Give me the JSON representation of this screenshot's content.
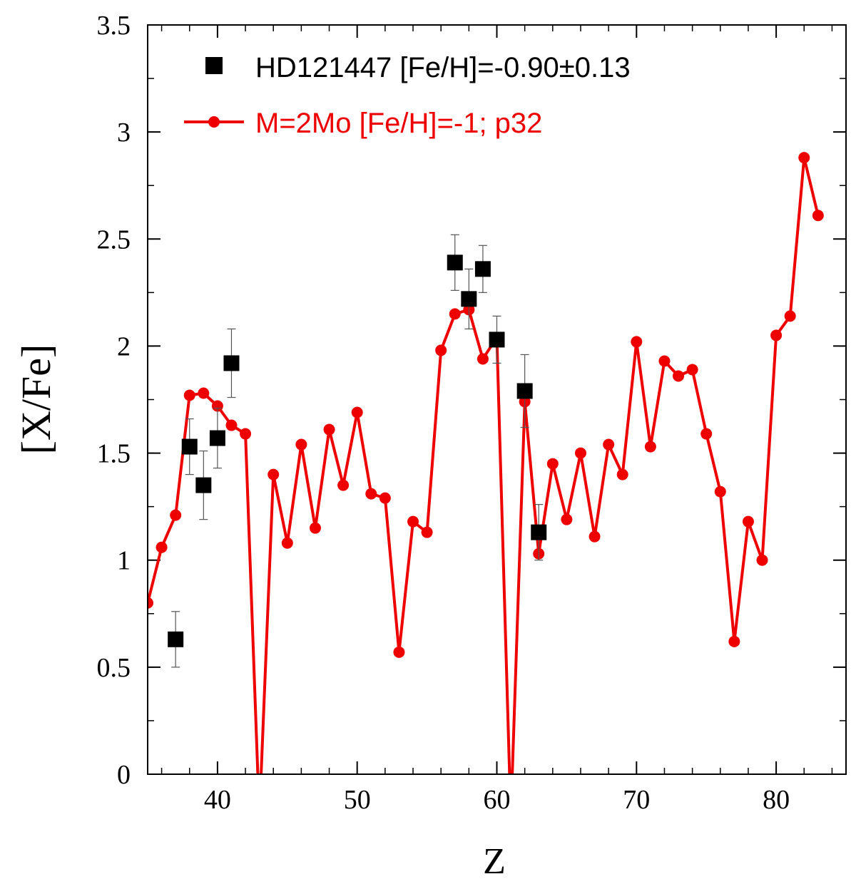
{
  "chart_data": {
    "type": "scatter",
    "xlabel": "Z",
    "ylabel": "[X/Fe]",
    "xlim": [
      35,
      85
    ],
    "ylim": [
      0,
      3.5
    ],
    "x_ticks": [
      40,
      50,
      60,
      70,
      80
    ],
    "x_tick_labels": [
      "40",
      "50",
      "60",
      "70",
      "80"
    ],
    "x_minor_step": 2,
    "y_ticks": [
      0,
      0.5,
      1,
      1.5,
      2,
      2.5,
      3,
      3.5
    ],
    "y_tick_labels": [
      "0",
      "0.5",
      "1",
      "1.5",
      "2",
      "2.5",
      "3",
      "3.5"
    ],
    "y_minor_step": 0.25,
    "grid": false,
    "legend_position": "top-left",
    "colors": {
      "observed": "#000000",
      "model": "#ee0000",
      "error_bar": "#555555"
    },
    "series": [
      {
        "name": "HD121447 [Fe/H]=-0.90±0.13",
        "kind": "scatter",
        "marker": "square",
        "color": "#000000",
        "x": [
          37,
          38,
          39,
          40,
          41,
          57,
          58,
          59,
          60,
          62,
          63
        ],
        "y": [
          0.63,
          1.53,
          1.35,
          1.57,
          1.92,
          2.39,
          2.22,
          2.36,
          2.03,
          1.79,
          1.13
        ],
        "yerr": [
          0.13,
          0.13,
          0.16,
          0.14,
          0.16,
          0.13,
          0.14,
          0.11,
          0.11,
          0.17,
          0.13
        ]
      },
      {
        "name": "M=2Mo [Fe/H]=-1; p32",
        "kind": "line",
        "marker": "circle",
        "color": "#ee0000",
        "x": [
          35,
          36,
          37,
          38,
          39,
          40,
          41,
          42,
          43,
          44,
          45,
          46,
          47,
          48,
          49,
          50,
          51,
          52,
          53,
          54,
          55,
          56,
          57,
          58,
          59,
          60,
          61,
          62,
          63,
          64,
          65,
          66,
          67,
          68,
          69,
          70,
          71,
          72,
          73,
          74,
          75,
          76,
          77,
          78,
          79,
          80,
          81,
          82,
          83
        ],
        "y": [
          0.8,
          1.06,
          1.21,
          1.77,
          1.78,
          1.72,
          1.63,
          1.59,
          null,
          1.4,
          1.08,
          1.54,
          1.15,
          1.61,
          1.35,
          1.69,
          1.31,
          1.29,
          0.57,
          1.18,
          1.13,
          1.98,
          2.15,
          2.17,
          1.94,
          2.04,
          null,
          1.74,
          1.03,
          1.45,
          1.19,
          1.5,
          1.11,
          1.54,
          1.4,
          2.02,
          1.53,
          1.93,
          1.86,
          1.89,
          1.59,
          1.32,
          0.62,
          1.18,
          1.0,
          2.05,
          2.14,
          2.88,
          2.61
        ]
      }
    ]
  }
}
